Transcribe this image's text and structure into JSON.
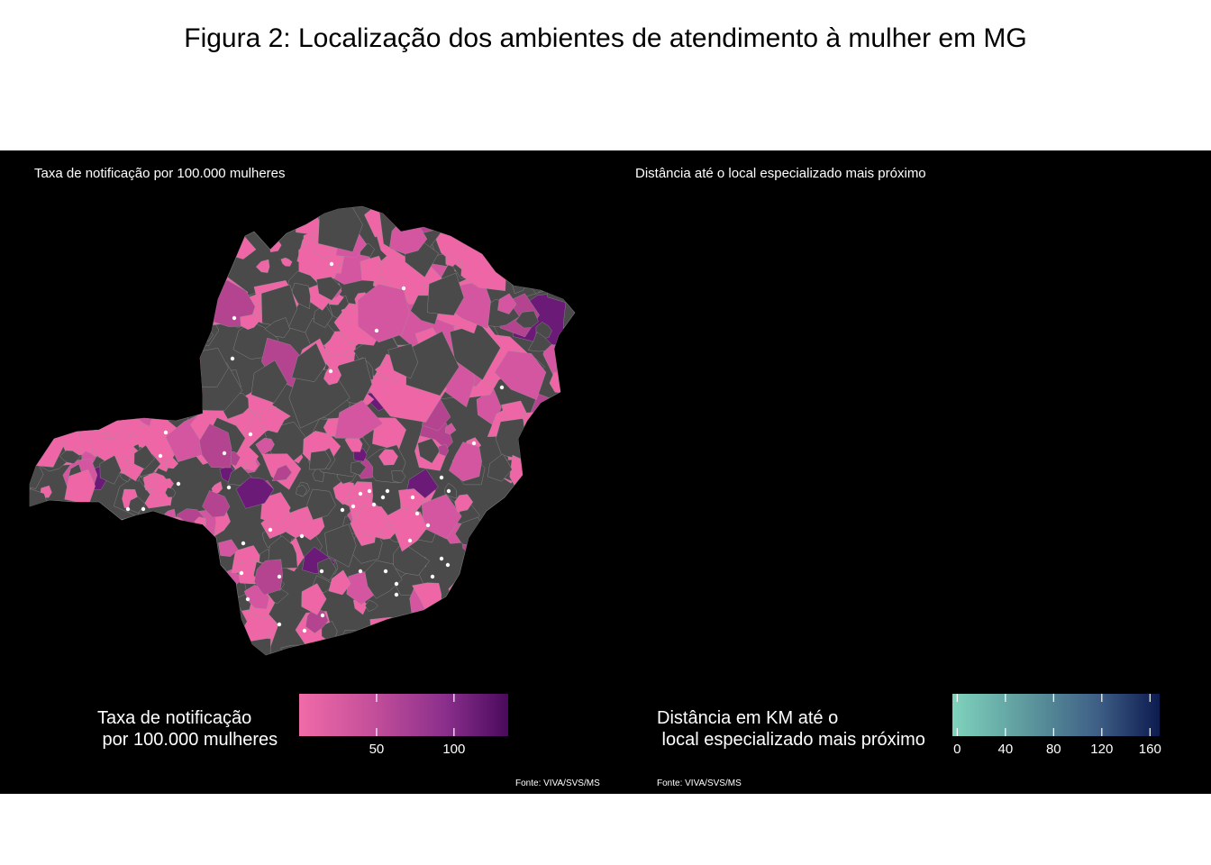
{
  "figure_title": "Figura 2: Localização dos ambientes de atendimento à mulher em MG",
  "panels": [
    {
      "subtitle": "Taxa de notificação por 100.000 mulheres",
      "legend_title": "Taxa de notificação\n por 100.000 mulheres",
      "legend_ticks": [
        "50",
        "100"
      ],
      "legend_tick_values": [
        50,
        100
      ],
      "legend_range": [
        0,
        135
      ],
      "legend_colors": [
        "#f06ba8",
        "#c44f9a",
        "#8a2f8c",
        "#4a0a5c"
      ],
      "no_data_color": "#4a4a4a",
      "marker_color": "#ffffff",
      "source": "Fonte: VIVA/SVS/MS"
    },
    {
      "subtitle": "Distância até o local especializado mais próximo",
      "legend_title": "Distância em KM até o\n local especializado mais próximo",
      "legend_ticks": [
        "0",
        "40",
        "80",
        "120",
        "160"
      ],
      "legend_tick_values": [
        0,
        40,
        80,
        120,
        160
      ],
      "legend_range": [
        -4,
        168
      ],
      "legend_colors": [
        "#7fd3bd",
        "#5e9a9e",
        "#3e5f86",
        "#0d1b4f"
      ],
      "marker_color": "#3b0a55",
      "source": "Fonte: VIVA/SVS/MS"
    }
  ]
}
